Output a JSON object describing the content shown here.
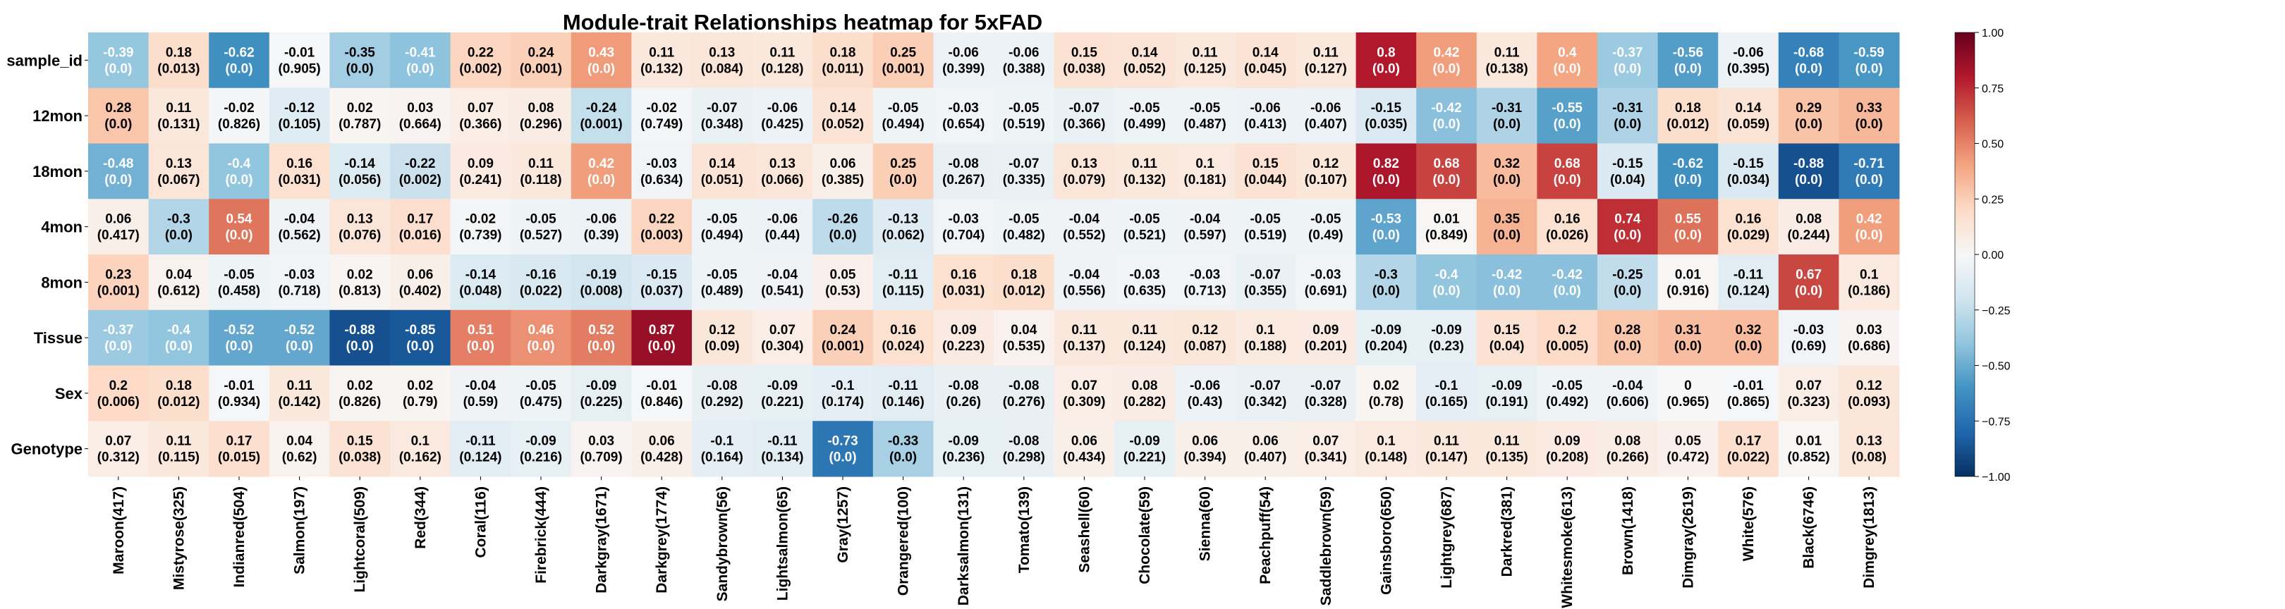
{
  "chart_data": {
    "type": "heatmap",
    "title": "Module-trait Relationships heatmap for 5xFAD",
    "rows": [
      "sample_id",
      "12mon",
      "18mon",
      "4mon",
      "8mon",
      "Tissue",
      "Sex",
      "Genotype"
    ],
    "columns": [
      "Maroon(417)",
      "Mistyrose(325)",
      "Indianred(504)",
      "Salmon(197)",
      "Lightcoral(509)",
      "Red(344)",
      "Coral(116)",
      "Firebrick(444)",
      "Darkgray(1671)",
      "Darkgrey(1774)",
      "Sandybrown(56)",
      "Lightsalmon(65)",
      "Gray(1257)",
      "Orangered(100)",
      "Darksalmon(131)",
      "Tomato(139)",
      "Seashell(60)",
      "Chocolate(59)",
      "Sienna(60)",
      "Peachpuff(54)",
      "Saddlebrown(59)",
      "Gainsboro(650)",
      "Lightgrey(687)",
      "Darkred(381)",
      "Whitesmoke(613)",
      "Brown(1418)",
      "Dimgray(2619)",
      "White(576)",
      "Black(6746)",
      "Dimgrey(1813)"
    ],
    "correlations": [
      [
        -0.39,
        0.18,
        -0.62,
        -0.01,
        -0.35,
        -0.41,
        0.22,
        0.24,
        0.43,
        0.11,
        0.13,
        0.11,
        0.18,
        0.25,
        -0.06,
        -0.06,
        0.15,
        0.14,
        0.11,
        0.14,
        0.11,
        0.8,
        0.42,
        0.11,
        0.4,
        -0.37,
        -0.56,
        -0.06,
        -0.68,
        -0.59
      ],
      [
        0.28,
        0.11,
        -0.02,
        -0.12,
        0.02,
        0.03,
        0.07,
        0.08,
        -0.24,
        -0.02,
        -0.07,
        -0.06,
        0.14,
        -0.05,
        -0.03,
        -0.05,
        -0.07,
        -0.05,
        -0.05,
        -0.06,
        -0.06,
        -0.15,
        -0.42,
        -0.31,
        -0.55,
        -0.31,
        0.18,
        0.14,
        0.29,
        0.33
      ],
      [
        -0.48,
        0.13,
        -0.4,
        0.16,
        -0.14,
        -0.22,
        0.09,
        0.11,
        0.42,
        -0.03,
        0.14,
        0.13,
        0.06,
        0.25,
        -0.08,
        -0.07,
        0.13,
        0.11,
        0.1,
        0.15,
        0.12,
        0.82,
        0.68,
        0.32,
        0.68,
        -0.15,
        -0.62,
        -0.15,
        -0.88,
        -0.71
      ],
      [
        0.06,
        -0.3,
        0.54,
        -0.04,
        0.13,
        0.17,
        -0.02,
        -0.05,
        -0.06,
        0.22,
        -0.05,
        -0.06,
        -0.26,
        -0.13,
        -0.03,
        -0.05,
        -0.04,
        -0.05,
        -0.04,
        -0.05,
        -0.05,
        -0.53,
        0.01,
        0.35,
        0.16,
        0.74,
        0.55,
        0.16,
        0.08,
        0.42
      ],
      [
        0.23,
        0.04,
        -0.05,
        -0.03,
        0.02,
        0.06,
        -0.14,
        -0.16,
        -0.19,
        -0.15,
        -0.05,
        -0.04,
        0.05,
        -0.11,
        0.16,
        0.18,
        -0.04,
        -0.03,
        -0.03,
        -0.07,
        -0.03,
        -0.3,
        -0.4,
        -0.42,
        -0.42,
        -0.25,
        0.01,
        -0.11,
        0.67,
        0.1
      ],
      [
        -0.37,
        -0.4,
        -0.52,
        -0.52,
        -0.88,
        -0.85,
        0.51,
        0.46,
        0.52,
        0.87,
        0.12,
        0.07,
        0.24,
        0.16,
        0.09,
        0.04,
        0.11,
        0.11,
        0.12,
        0.1,
        0.09,
        -0.09,
        -0.09,
        0.15,
        0.2,
        0.28,
        0.31,
        0.32,
        -0.03,
        0.03
      ],
      [
        0.2,
        0.18,
        -0.01,
        0.11,
        0.02,
        0.02,
        -0.04,
        -0.05,
        -0.09,
        -0.01,
        -0.08,
        -0.09,
        -0.1,
        -0.11,
        -0.08,
        -0.08,
        0.07,
        0.08,
        -0.06,
        -0.07,
        -0.07,
        0.02,
        -0.1,
        -0.09,
        -0.05,
        -0.04,
        0.0,
        -0.01,
        0.07,
        0.12
      ],
      [
        0.07,
        0.11,
        0.17,
        0.04,
        0.15,
        0.1,
        -0.11,
        -0.09,
        0.03,
        0.06,
        -0.1,
        -0.11,
        -0.73,
        -0.33,
        -0.09,
        -0.08,
        0.06,
        -0.09,
        0.06,
        0.06,
        0.07,
        0.1,
        0.11,
        0.11,
        0.09,
        0.08,
        0.05,
        0.17,
        0.01,
        0.13
      ]
    ],
    "pvalues": [
      [
        "0.0",
        "0.013",
        "0.0",
        "0.905",
        "0.0",
        "0.0",
        "0.002",
        "0.001",
        "0.0",
        "0.132",
        "0.084",
        "0.128",
        "0.011",
        "0.001",
        "0.399",
        "0.388",
        "0.038",
        "0.052",
        "0.125",
        "0.045",
        "0.127",
        "0.0",
        "0.0",
        "0.138",
        "0.0",
        "0.0",
        "0.0",
        "0.395",
        "0.0",
        "0.0"
      ],
      [
        "0.0",
        "0.131",
        "0.826",
        "0.105",
        "0.787",
        "0.664",
        "0.366",
        "0.296",
        "0.001",
        "0.749",
        "0.348",
        "0.425",
        "0.052",
        "0.494",
        "0.654",
        "0.519",
        "0.366",
        "0.499",
        "0.487",
        "0.413",
        "0.407",
        "0.035",
        "0.0",
        "0.0",
        "0.0",
        "0.0",
        "0.012",
        "0.059",
        "0.0",
        "0.0"
      ],
      [
        "0.0",
        "0.067",
        "0.0",
        "0.031",
        "0.056",
        "0.002",
        "0.241",
        "0.118",
        "0.0",
        "0.634",
        "0.051",
        "0.066",
        "0.385",
        "0.0",
        "0.267",
        "0.335",
        "0.079",
        "0.132",
        "0.181",
        "0.044",
        "0.107",
        "0.0",
        "0.0",
        "0.0",
        "0.0",
        "0.04",
        "0.0",
        "0.034",
        "0.0",
        "0.0"
      ],
      [
        "0.417",
        "0.0",
        "0.0",
        "0.562",
        "0.076",
        "0.016",
        "0.739",
        "0.527",
        "0.39",
        "0.003",
        "0.494",
        "0.44",
        "0.0",
        "0.062",
        "0.704",
        "0.482",
        "0.552",
        "0.521",
        "0.597",
        "0.519",
        "0.49",
        "0.0",
        "0.849",
        "0.0",
        "0.026",
        "0.0",
        "0.0",
        "0.029",
        "0.244",
        "0.0"
      ],
      [
        "0.001",
        "0.612",
        "0.458",
        "0.718",
        "0.813",
        "0.402",
        "0.048",
        "0.022",
        "0.008",
        "0.037",
        "0.489",
        "0.541",
        "0.53",
        "0.115",
        "0.031",
        "0.012",
        "0.556",
        "0.635",
        "0.713",
        "0.355",
        "0.691",
        "0.0",
        "0.0",
        "0.0",
        "0.0",
        "0.0",
        "0.916",
        "0.124",
        "0.0",
        "0.186"
      ],
      [
        "0.0",
        "0.0",
        "0.0",
        "0.0",
        "0.0",
        "0.0",
        "0.0",
        "0.0",
        "0.0",
        "0.0",
        "0.09",
        "0.304",
        "0.001",
        "0.024",
        "0.223",
        "0.535",
        "0.137",
        "0.124",
        "0.087",
        "0.188",
        "0.201",
        "0.204",
        "0.23",
        "0.04",
        "0.005",
        "0.0",
        "0.0",
        "0.0",
        "0.69",
        "0.686"
      ],
      [
        "0.006",
        "0.012",
        "0.934",
        "0.142",
        "0.826",
        "0.79",
        "0.59",
        "0.475",
        "0.225",
        "0.846",
        "0.292",
        "0.221",
        "0.174",
        "0.146",
        "0.26",
        "0.276",
        "0.309",
        "0.282",
        "0.43",
        "0.342",
        "0.328",
        "0.78",
        "0.165",
        "0.191",
        "0.492",
        "0.606",
        "0.965",
        "0.865",
        "0.323",
        "0.093"
      ],
      [
        "0.312",
        "0.115",
        "0.015",
        "0.62",
        "0.038",
        "0.162",
        "0.124",
        "0.216",
        "0.709",
        "0.428",
        "0.164",
        "0.134",
        "0.0",
        "0.0",
        "0.236",
        "0.298",
        "0.434",
        "0.221",
        "0.394",
        "0.407",
        "0.341",
        "0.148",
        "0.147",
        "0.135",
        "0.208",
        "0.266",
        "0.472",
        "0.022",
        "0.852",
        "0.08"
      ]
    ],
    "colorbar": {
      "colormap": "RdBu_r",
      "vmin": -1.0,
      "vmax": 1.0,
      "ticks": [
        "1.00",
        "0.75",
        "0.50",
        "0.25",
        "0.00",
        "−0.25",
        "−0.50",
        "−0.75",
        "−1.00"
      ]
    }
  }
}
